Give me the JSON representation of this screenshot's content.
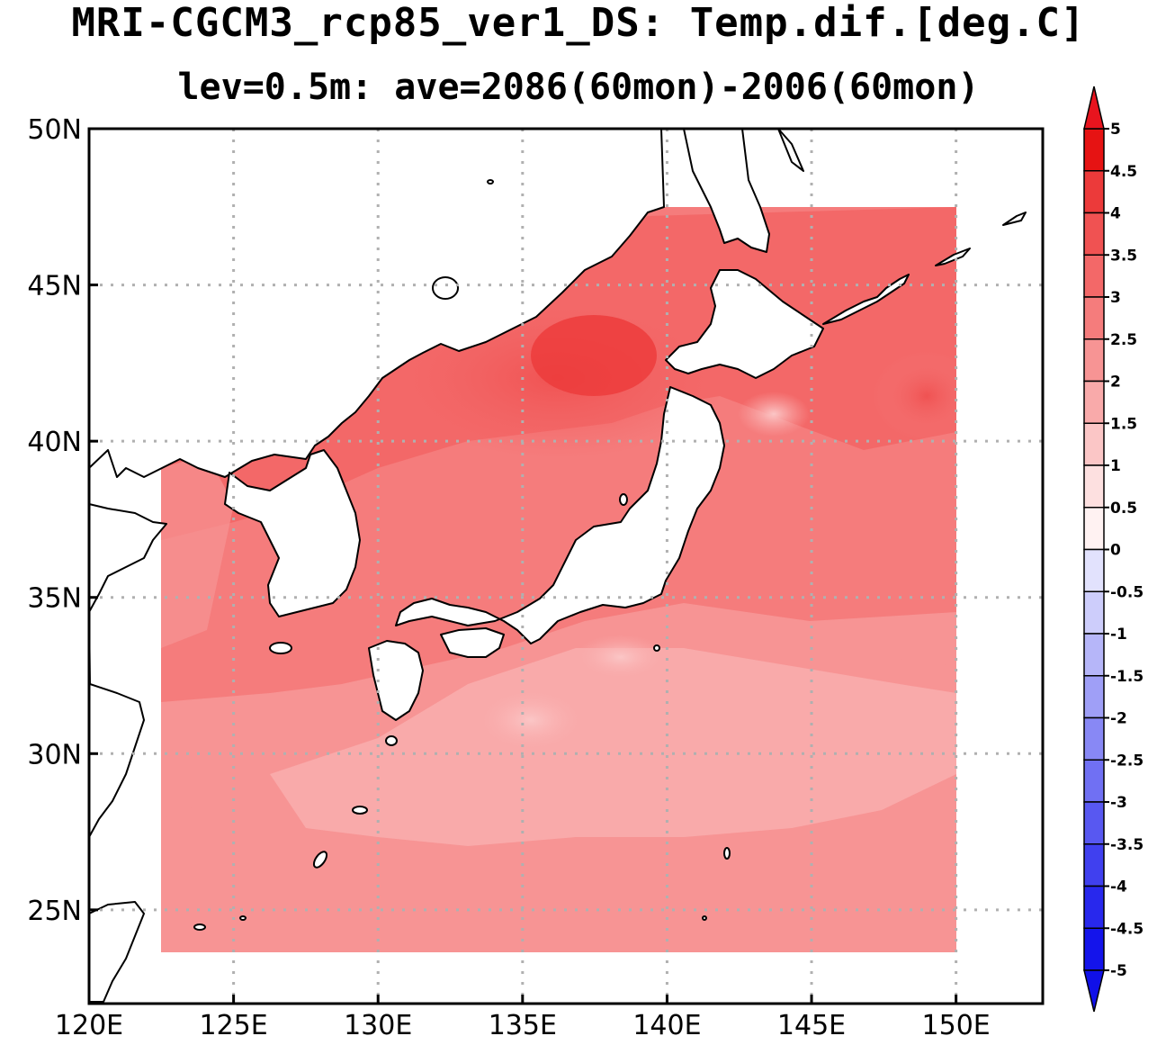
{
  "title": "MRI-CGCM3_rcp85_ver1_DS: Temp.dif.[deg.C]",
  "subtitle": "lev=0.5m: ave=2086(60mon)-2006(60mon)",
  "map": {
    "lon_range": [
      120,
      153
    ],
    "lat_range": [
      22,
      50
    ],
    "data_domain": {
      "lon": [
        122.5,
        150
      ],
      "lat": [
        23.7,
        47.5
      ]
    },
    "x_ticks": [
      {
        "value": 120,
        "label": "120E"
      },
      {
        "value": 125,
        "label": "125E"
      },
      {
        "value": 130,
        "label": "130E"
      },
      {
        "value": 135,
        "label": "135E"
      },
      {
        "value": 140,
        "label": "140E"
      },
      {
        "value": 145,
        "label": "145E"
      },
      {
        "value": 150,
        "label": "150E"
      }
    ],
    "y_ticks": [
      {
        "value": 50,
        "label": "50N"
      },
      {
        "value": 45,
        "label": "45N"
      },
      {
        "value": 40,
        "label": "40N"
      },
      {
        "value": 35,
        "label": "35N"
      },
      {
        "value": 30,
        "label": "30N"
      },
      {
        "value": 25,
        "label": "25N"
      }
    ],
    "grid": "dotted"
  },
  "colorbar": {
    "levels": [
      {
        "label": "5",
        "color": "#e61313"
      },
      {
        "label": "4.5",
        "color": "#ec3a3a"
      },
      {
        "label": "4",
        "color": "#f05252"
      },
      {
        "label": "3.5",
        "color": "#f36868"
      },
      {
        "label": "3",
        "color": "#f57c7c"
      },
      {
        "label": "2.5",
        "color": "#f79494"
      },
      {
        "label": "2",
        "color": "#f9aaaa"
      },
      {
        "label": "1.5",
        "color": "#fbc6c6"
      },
      {
        "label": "1",
        "color": "#fde0e0"
      },
      {
        "label": "0.5",
        "color": "#fff2f2"
      },
      {
        "label": "0",
        "color": "#f4f4ff"
      },
      {
        "label": "-0.5",
        "color": "#e2e2fd"
      },
      {
        "label": "-1",
        "color": "#cdcdfb"
      },
      {
        "label": "-1.5",
        "color": "#b6b6f9"
      },
      {
        "label": "-2",
        "color": "#9f9ff7"
      },
      {
        "label": "-2.5",
        "color": "#8888f5"
      },
      {
        "label": "-3",
        "color": "#7070f3"
      },
      {
        "label": "-3.5",
        "color": "#5858f1"
      },
      {
        "label": "-4",
        "color": "#4040ef"
      },
      {
        "label": "-4.5",
        "color": "#2828ed"
      },
      {
        "label": "-5",
        "color": "#1414eb"
      }
    ],
    "top_arrow_color": "#e8141e",
    "bottom_arrow_color": "#1010e8"
  }
}
